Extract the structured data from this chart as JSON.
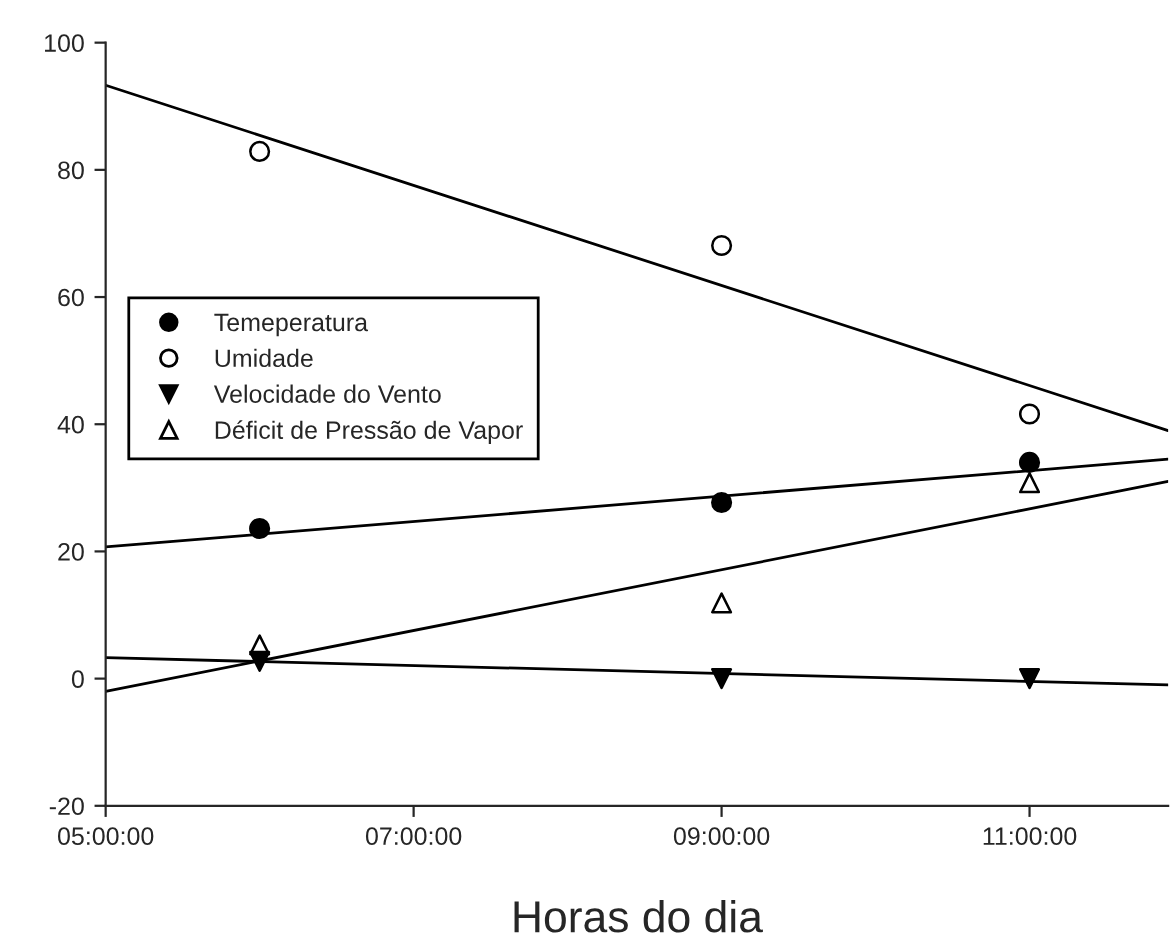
{
  "chart_data": {
    "type": "scatter",
    "xlabel": "Horas do dia",
    "xlim": [
      5,
      11.9
    ],
    "xticks": [
      {
        "value": 5,
        "label": "05:00:00"
      },
      {
        "value": 7,
        "label": "07:00:00"
      },
      {
        "value": 9,
        "label": "09:00:00"
      },
      {
        "value": 11,
        "label": "11:00:00"
      }
    ],
    "ylim": [
      -20,
      100
    ],
    "yticks": [
      -20,
      0,
      20,
      40,
      60,
      80,
      100
    ],
    "grid": false,
    "legend": "left",
    "series": [
      {
        "name": "Temeperatura",
        "marker": "circle",
        "color": "#000000",
        "x": [
          6,
          9,
          11
        ],
        "values": [
          23.6,
          27.7,
          34
        ]
      },
      {
        "name": "Umidade",
        "marker": "circle",
        "color": "#000000",
        "x": [
          6,
          9,
          11
        ],
        "values": [
          82.9,
          68.1,
          41.6
        ]
      },
      {
        "name": "Velocidade do Vento",
        "marker": "triangle_down",
        "color": "#000000",
        "x": [
          6,
          9,
          11
        ],
        "values": [
          2.7,
          0,
          0
        ]
      },
      {
        "name": "Déficit de Pressão de Vapor",
        "marker": "triangle",
        "color": "#000000",
        "x": [
          6,
          9,
          11
        ],
        "values": [
          5.3,
          11.9,
          30.8
        ]
      },
      {
        "type": "line",
        "color": "#000000",
        "x": [
          5,
          11.9
        ],
        "values": [
          20.7,
          34.5
        ]
      },
      {
        "type": "line",
        "color": "#000000",
        "x": [
          5,
          11.9
        ],
        "values": [
          93.3,
          39
        ]
      },
      {
        "type": "line",
        "color": "#000000",
        "x": [
          5,
          11.9
        ],
        "values": [
          3.3,
          -1
        ]
      },
      {
        "type": "line",
        "color": "#000000",
        "x": [
          5,
          11.9
        ],
        "values": [
          -2,
          31
        ]
      }
    ]
  }
}
